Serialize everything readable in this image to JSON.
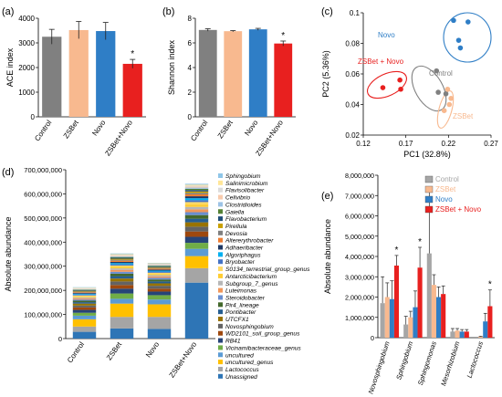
{
  "panels": {
    "a": "(a)",
    "b": "(b)",
    "c": "(c)",
    "d": "(d)",
    "e": "(e)"
  },
  "chart_data": [
    {
      "id": "a",
      "type": "bar",
      "ylabel": "ACE index",
      "categories": [
        "Control",
        "ZSBet",
        "Novo",
        "ZSBet+Novo"
      ],
      "values": [
        3250,
        3520,
        3480,
        2150
      ],
      "errors": [
        300,
        350,
        350,
        180
      ],
      "colors": [
        "#808080",
        "#f8b98f",
        "#2f7ec6",
        "#e8201f"
      ],
      "ylim": [
        0,
        4000
      ],
      "yticks": [
        0,
        1000,
        2000,
        3000,
        4000
      ],
      "yticklabels": [
        "0",
        "1000",
        "2000",
        "3000",
        "4000"
      ],
      "annotations": [
        {
          "category": "ZSBet+Novo",
          "text": "*"
        }
      ]
    },
    {
      "id": "b",
      "type": "bar",
      "ylabel": "Shannon index",
      "categories": [
        "Control",
        "ZSBet",
        "Novo",
        "ZSBet+Novo"
      ],
      "values": [
        7.05,
        6.95,
        7.1,
        5.95
      ],
      "errors": [
        0.1,
        0.05,
        0.08,
        0.2
      ],
      "colors": [
        "#808080",
        "#f8b98f",
        "#2f7ec6",
        "#e8201f"
      ],
      "ylim": [
        0,
        8
      ],
      "yticks": [
        0,
        2,
        4,
        6,
        8
      ],
      "yticklabels": [
        "0",
        "2",
        "4",
        "6",
        "8"
      ],
      "annotations": [
        {
          "category": "ZSBet+Novo",
          "text": "*"
        }
      ]
    },
    {
      "id": "c",
      "type": "scatter",
      "xlabel": "PC1 (32.8%)",
      "ylabel": "PC2 (5.36%)",
      "xlim": [
        0.12,
        0.27
      ],
      "ylim": [
        0.02,
        0.1
      ],
      "xticks": [
        0.12,
        0.17,
        0.22,
        0.27
      ],
      "xticklabels": [
        "0.12",
        "0.17",
        "0.22",
        "0.27"
      ],
      "yticks": [
        0.02,
        0.04,
        0.06,
        0.08,
        0.1
      ],
      "yticklabels": [
        "0.02",
        "0.04",
        "0.06",
        "0.08",
        "0.1"
      ],
      "series": [
        {
          "name": "Novo",
          "color": "#2f7ec6",
          "x": [
            0.226,
            0.243,
            0.232,
            0.234
          ],
          "y": [
            0.095,
            0.094,
            0.082,
            0.077
          ]
        },
        {
          "name": "ZSBet + Novo",
          "color": "#e8201f",
          "x": [
            0.143,
            0.163,
            0.164
          ],
          "y": [
            0.051,
            0.056,
            0.05
          ]
        },
        {
          "name": "Control",
          "color": "#808080",
          "x": [
            0.206,
            0.208,
            0.217
          ],
          "y": [
            0.062,
            0.048,
            0.047
          ]
        },
        {
          "name": "ZSBet",
          "color": "#f8b98f",
          "x": [
            0.219,
            0.223,
            0.221,
            0.215
          ],
          "y": [
            0.05,
            0.044,
            0.04,
            0.036
          ]
        }
      ]
    },
    {
      "id": "d",
      "type": "bar",
      "stacked": true,
      "ylabel": "Absolute abundance",
      "categories": [
        "Control",
        "ZSBet",
        "Novo",
        "ZSBet+Novo"
      ],
      "ylim": [
        0,
        700000000
      ],
      "yticks": [
        0,
        100000000,
        200000000,
        300000000,
        400000000,
        500000000,
        600000000,
        700000000
      ],
      "yticklabels": [
        "0",
        "100,000,000",
        "200,000,000",
        "300,000,000",
        "400,000,000",
        "500,000,000",
        "600,000,000",
        "700,000,000"
      ],
      "series": [
        {
          "name": "Unassigned",
          "color": "#2e75b6",
          "values": [
            28000000,
            42000000,
            40000000,
            232000000
          ]
        },
        {
          "name": "Lactococcus",
          "color": "#a5a5a5",
          "values": [
            22000000,
            48000000,
            50000000,
            60000000
          ]
        },
        {
          "name": "uncultured_genus",
          "color": "#ffc000",
          "values": [
            30000000,
            55000000,
            52000000,
            50000000
          ]
        },
        {
          "name": "uncultured",
          "color": "#5b9bd5",
          "values": [
            15000000,
            20000000,
            20000000,
            30000000
          ]
        },
        {
          "name": "Vicinamibacteraceae_genus",
          "color": "#70ad47",
          "values": [
            12000000,
            22000000,
            18000000,
            25000000
          ]
        },
        {
          "name": "RB41",
          "color": "#264478",
          "values": [
            12000000,
            20000000,
            15000000,
            25000000
          ]
        },
        {
          "name": "WD2101_soil_group_genus",
          "color": "#9e480e",
          "values": [
            10000000,
            15000000,
            12000000,
            22000000
          ]
        },
        {
          "name": "Novosphingobium",
          "color": "#636363",
          "values": [
            8000000,
            15000000,
            12000000,
            20000000
          ]
        },
        {
          "name": "UTCFX1",
          "color": "#997300",
          "values": [
            8000000,
            12000000,
            10000000,
            18000000
          ]
        },
        {
          "name": "Pontibacter",
          "color": "#255e91",
          "values": [
            6000000,
            10000000,
            8000000,
            15000000
          ]
        },
        {
          "name": "Pir4_lineage",
          "color": "#43682b",
          "values": [
            6000000,
            10000000,
            8000000,
            15000000
          ]
        },
        {
          "name": "Steroidobacter",
          "color": "#698ed0",
          "values": [
            5000000,
            8000000,
            7000000,
            12000000
          ]
        },
        {
          "name": "Luteimonas",
          "color": "#f1975a",
          "values": [
            5000000,
            8000000,
            6000000,
            12000000
          ]
        },
        {
          "name": "Subgroup_7_genus",
          "color": "#b7b7b7",
          "values": [
            4000000,
            6000000,
            5000000,
            10000000
          ]
        },
        {
          "name": "Antarcticibacterium",
          "color": "#ffcd33",
          "values": [
            4000000,
            6000000,
            5000000,
            10000000
          ]
        },
        {
          "name": "S0134_terrestrial_group_genus",
          "color": "#ffd966",
          "values": [
            4000000,
            6000000,
            5000000,
            10000000
          ]
        },
        {
          "name": "Bryobacter",
          "color": "#4472c4",
          "values": [
            4000000,
            5000000,
            5000000,
            8000000
          ]
        },
        {
          "name": "Algoriphagus",
          "color": "#00b0f0",
          "values": [
            3000000,
            5000000,
            4000000,
            8000000
          ]
        },
        {
          "name": "Adhaeribacter",
          "color": "#1f3864",
          "values": [
            3000000,
            5000000,
            4000000,
            8000000
          ]
        },
        {
          "name": "Altererythrobacter",
          "color": "#ed7d31",
          "values": [
            3000000,
            5000000,
            4000000,
            8000000
          ]
        },
        {
          "name": "Devosia",
          "color": "#7f7f7f",
          "values": [
            3000000,
            4000000,
            3000000,
            6000000
          ]
        },
        {
          "name": "Pirellula",
          "color": "#c9a000",
          "values": [
            3000000,
            4000000,
            3000000,
            6000000
          ]
        },
        {
          "name": "Flavobacterium",
          "color": "#1f4e79",
          "values": [
            3000000,
            4000000,
            3000000,
            6000000
          ]
        },
        {
          "name": "Gaiella",
          "color": "#548235",
          "values": [
            2000000,
            3000000,
            3000000,
            5000000
          ]
        },
        {
          "name": "Clostridioides",
          "color": "#9dc3e6",
          "values": [
            2000000,
            3000000,
            3000000,
            5000000
          ]
        },
        {
          "name": "Cellvibrio",
          "color": "#f8cbad",
          "values": [
            2000000,
            3000000,
            3000000,
            4000000
          ]
        },
        {
          "name": "Flavisolibacter",
          "color": "#dbdbdb",
          "values": [
            2000000,
            3000000,
            2000000,
            4000000
          ]
        },
        {
          "name": "Salinimicrobium",
          "color": "#ffe699",
          "values": [
            2000000,
            3000000,
            2000000,
            4000000
          ]
        },
        {
          "name": "Sphingobium",
          "color": "#8fc6e8",
          "values": [
            2000000,
            3000000,
            2000000,
            4000000
          ]
        }
      ]
    },
    {
      "id": "e",
      "type": "bar",
      "ylabel": "Absolute abundance",
      "categories": [
        "Novosphingobium",
        "Sphingobium",
        "Sphingomonas",
        "Mesorhizobium",
        "Lactococcus"
      ],
      "ylim": [
        0,
        8000000
      ],
      "yticks": [
        0,
        1000000,
        2000000,
        3000000,
        4000000,
        5000000,
        6000000,
        7000000,
        8000000
      ],
      "yticklabels": [
        "0",
        "1,000,000",
        "2,000,000",
        "3,000,000",
        "4,000,000",
        "5,000,000",
        "6,000,000",
        "7,000,000",
        "8,000,000"
      ],
      "series": [
        {
          "name": "Control",
          "color": "#a6a6a6",
          "values": [
            1700000,
            650000,
            4150000,
            300000,
            0
          ],
          "errors": [
            1300000,
            400000,
            3200000,
            150000,
            0
          ]
        },
        {
          "name": "ZSBet",
          "color": "#f8b98f",
          "values": [
            2000000,
            1000000,
            2600000,
            350000,
            50000
          ],
          "errors": [
            700000,
            300000,
            500000,
            100000,
            20000
          ]
        },
        {
          "name": "Novo",
          "color": "#2f7ec6",
          "values": [
            1900000,
            1500000,
            2000000,
            300000,
            800000
          ],
          "errors": [
            900000,
            800000,
            500000,
            100000,
            400000
          ]
        },
        {
          "name": "ZSBet + Novo",
          "color": "#e8201f",
          "values": [
            3550000,
            3450000,
            2150000,
            300000,
            1550000
          ],
          "errors": [
            500000,
            1000000,
            400000,
            100000,
            800000
          ]
        }
      ],
      "annotations": [
        {
          "category": "Novosphingobium",
          "text": "*"
        },
        {
          "category": "Sphingobium",
          "text": "*"
        },
        {
          "category": "Lactococcus",
          "text": "*"
        }
      ]
    }
  ]
}
